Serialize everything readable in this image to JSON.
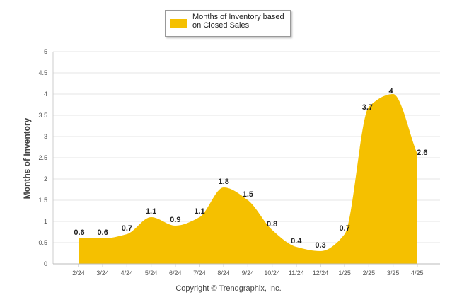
{
  "chart_data": {
    "type": "area",
    "categories": [
      "2/24",
      "3/24",
      "4/24",
      "5/24",
      "6/24",
      "7/24",
      "8/24",
      "9/24",
      "10/24",
      "11/24",
      "12/24",
      "1/25",
      "2/25",
      "3/25",
      "4/25"
    ],
    "series": [
      {
        "name": "Months of Inventory based on Closed Sales",
        "values": [
          0.6,
          0.6,
          0.7,
          1.1,
          0.9,
          1.1,
          1.8,
          1.5,
          0.8,
          0.4,
          0.3,
          0.7,
          3.7,
          4,
          2.6
        ],
        "color": "#f5c000"
      }
    ],
    "ylabel": "Months of Inventory",
    "ylim": [
      0,
      5
    ],
    "yticks": [
      "0",
      "0.5",
      "1",
      "1.5",
      "2",
      "2.5",
      "3",
      "3.5",
      "4",
      "4.5",
      "5"
    ],
    "grid": true,
    "legend_position": "top-center"
  },
  "legend": {
    "swatch_color": "#f5c000",
    "label": "Months of Inventory based on Closed Sales"
  },
  "footer": {
    "copyright": "Copyright © Trendgraphix, Inc."
  }
}
